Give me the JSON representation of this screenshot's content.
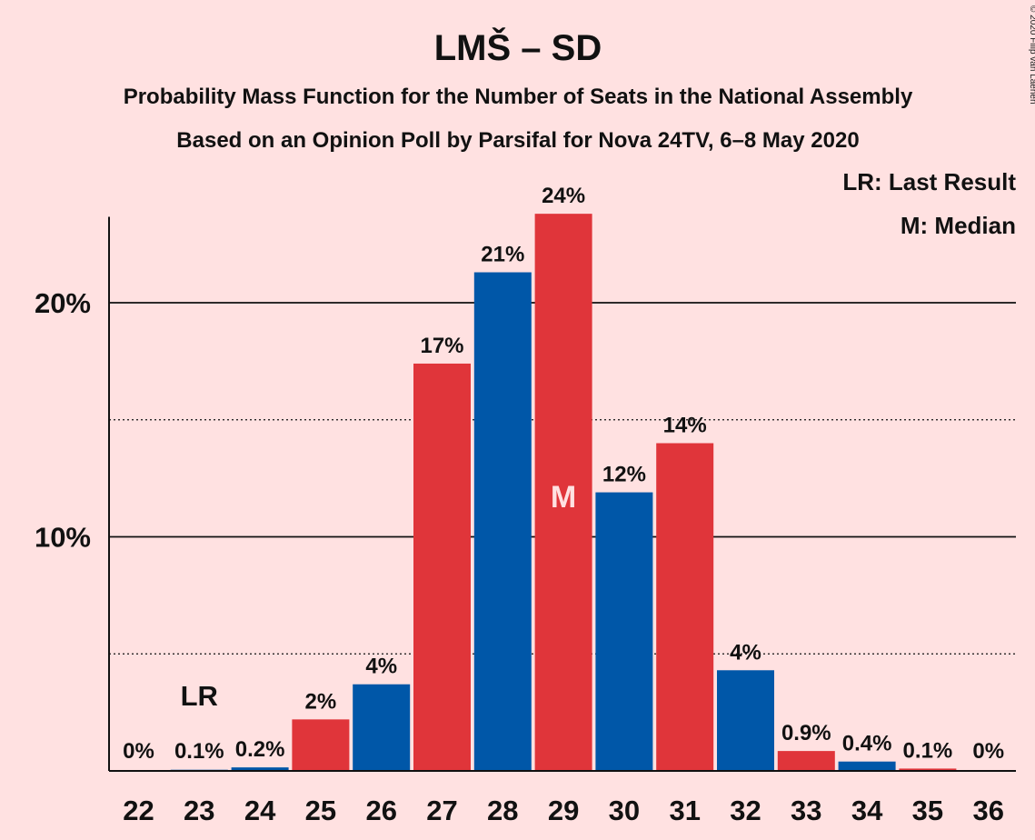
{
  "title": "LMŠ – SD",
  "subtitle_1": "Probability Mass Function for the Number of Seats in the National Assembly",
  "subtitle_2": "Based on an Opinion Poll by Parsifal for Nova 24TV, 6–8 May 2020",
  "credit": "© 2020 Filip van Laenen",
  "legend": {
    "last_result": "LR: Last Result",
    "median": "M: Median"
  },
  "colors": {
    "background": "#FFE1E1",
    "red": "#E0353A",
    "blue": "#0057A8"
  },
  "chart_data": {
    "type": "bar",
    "categories": [
      "22",
      "23",
      "24",
      "25",
      "26",
      "27",
      "28",
      "29",
      "30",
      "31",
      "32",
      "33",
      "34",
      "35",
      "36"
    ],
    "values": [
      0,
      0.05,
      0.15,
      2.2,
      3.7,
      17.4,
      21.3,
      23.8,
      11.9,
      14.0,
      4.3,
      0.85,
      0.4,
      0.1,
      0
    ],
    "labels": [
      "0%",
      "0.1%",
      "0.2%",
      "2%",
      "4%",
      "17%",
      "21%",
      "24%",
      "12%",
      "14%",
      "4%",
      "0.9%",
      "0.4%",
      "0.1%",
      "0%"
    ],
    "bar_colors": [
      "red",
      "blue",
      "blue",
      "red",
      "blue",
      "red",
      "blue",
      "red",
      "blue",
      "red",
      "blue",
      "red",
      "blue",
      "red",
      "blue"
    ],
    "ylim": [
      0,
      26
    ],
    "yticks": [
      {
        "value": 10,
        "label": "10%"
      },
      {
        "value": 20,
        "label": "20%"
      }
    ],
    "dotted_gridlines": [
      5,
      15
    ],
    "last_result": {
      "category": "23",
      "label": "LR"
    },
    "median": {
      "category": "29",
      "label": "M"
    },
    "xlabel": "",
    "ylabel": "",
    "legend_position": "top-right"
  }
}
